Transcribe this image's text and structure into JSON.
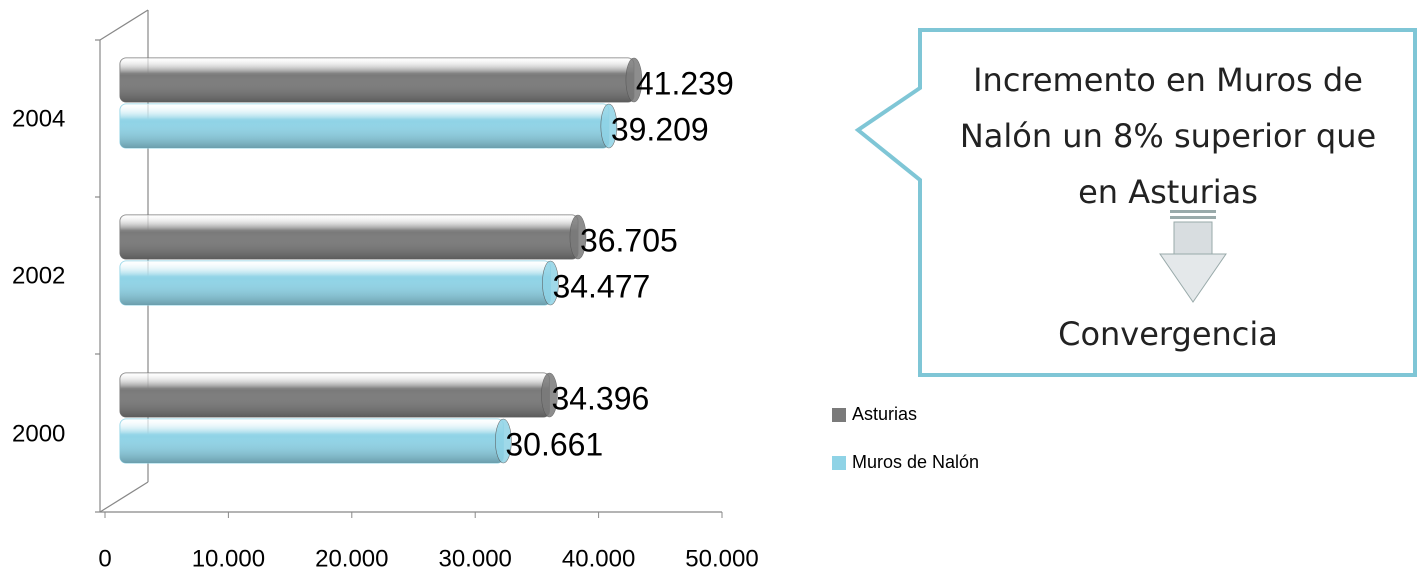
{
  "chart_data": {
    "type": "bar",
    "orientation": "horizontal",
    "categories": [
      "2000",
      "2002",
      "2004"
    ],
    "series": [
      {
        "name": "Asturias",
        "color": "#7a7a7a",
        "values": [
          34396,
          36705,
          41239
        ],
        "value_labels": [
          "34.396",
          "36.705",
          "41.239"
        ]
      },
      {
        "name": "Muros de Nalón",
        "color": "#8fd3e6",
        "values": [
          30661,
          34477,
          39209
        ],
        "value_labels": [
          "30.661",
          "34.477",
          "39.209"
        ]
      }
    ],
    "xlim": [
      0,
      50000
    ],
    "xticks": [
      0,
      {
        "value": 10000,
        "label": "10.000"
      },
      {
        "value": 20000,
        "label": "20.000"
      },
      {
        "value": 30000,
        "label": "30.000"
      },
      {
        "value": 40000,
        "label": "40.000"
      },
      {
        "value": 50000,
        "label": "50.000"
      }
    ],
    "legend": "right",
    "annotations": [
      "Incremento en Muros de Nalón un 8% superior que en Asturias",
      "Convergencia"
    ]
  }
}
